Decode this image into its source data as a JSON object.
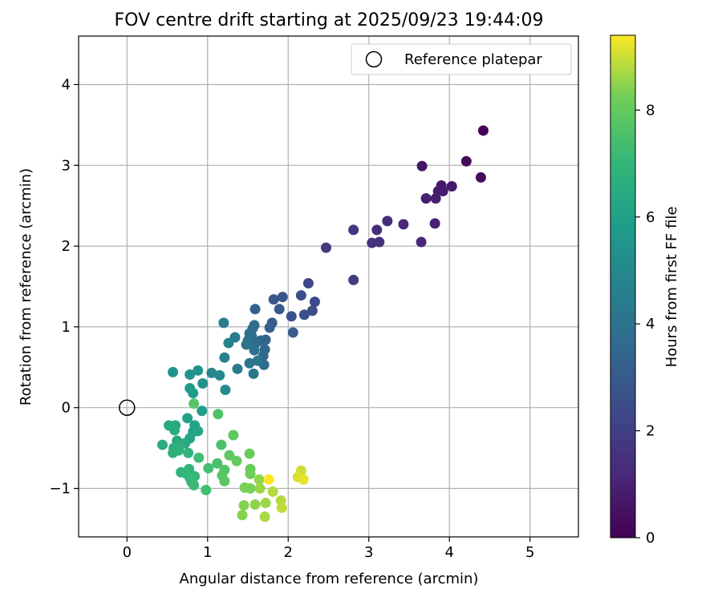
{
  "chart_data": {
    "type": "scatter",
    "title": "FOV centre drift starting at 2025/09/23 19:44:09",
    "xlabel": "Angular distance from reference (arcmin)",
    "ylabel": "Rotation from reference (arcmin)",
    "xlim": [
      -0.6,
      5.6
    ],
    "ylim": [
      -1.6,
      4.6
    ],
    "xticks": [
      0,
      1,
      2,
      3,
      4,
      5
    ],
    "xtick_labels": [
      "0",
      "1",
      "2",
      "3",
      "4",
      "5"
    ],
    "yticks": [
      -1,
      0,
      1,
      2,
      3,
      4
    ],
    "ytick_labels": [
      "−1",
      "0",
      "1",
      "2",
      "3",
      "4"
    ],
    "grid": true,
    "legend": {
      "label": "Reference platepar",
      "position": "top-right"
    },
    "reference_point": {
      "x": 0,
      "y": 0
    },
    "colorbar": {
      "label": "Hours from first FF file",
      "colormap": "viridis",
      "range": [
        0,
        9.4
      ],
      "ticks": [
        0,
        2,
        4,
        6,
        8
      ],
      "tick_labels": [
        "0",
        "2",
        "4",
        "6",
        "8"
      ]
    },
    "points": [
      {
        "x": 4.42,
        "y": 3.43,
        "h": 0.0
      },
      {
        "x": 4.21,
        "y": 3.05,
        "h": 0.3
      },
      {
        "x": 4.39,
        "y": 2.85,
        "h": 0.3
      },
      {
        "x": 3.66,
        "y": 2.99,
        "h": 0.6
      },
      {
        "x": 4.03,
        "y": 2.74,
        "h": 0.7
      },
      {
        "x": 3.9,
        "y": 2.75,
        "h": 0.7
      },
      {
        "x": 3.86,
        "y": 2.68,
        "h": 0.8
      },
      {
        "x": 3.92,
        "y": 2.68,
        "h": 0.8
      },
      {
        "x": 3.71,
        "y": 2.59,
        "h": 0.9
      },
      {
        "x": 3.83,
        "y": 2.59,
        "h": 0.9
      },
      {
        "x": 3.82,
        "y": 2.28,
        "h": 1.0
      },
      {
        "x": 3.65,
        "y": 2.05,
        "h": 1.2
      },
      {
        "x": 3.43,
        "y": 2.27,
        "h": 1.2
      },
      {
        "x": 3.23,
        "y": 2.31,
        "h": 1.3
      },
      {
        "x": 3.1,
        "y": 2.2,
        "h": 1.4
      },
      {
        "x": 3.04,
        "y": 2.04,
        "h": 1.5
      },
      {
        "x": 3.13,
        "y": 2.05,
        "h": 1.5
      },
      {
        "x": 2.81,
        "y": 2.2,
        "h": 1.7
      },
      {
        "x": 2.47,
        "y": 1.98,
        "h": 1.9
      },
      {
        "x": 2.81,
        "y": 1.58,
        "h": 2.0
      },
      {
        "x": 2.25,
        "y": 1.54,
        "h": 2.3
      },
      {
        "x": 2.33,
        "y": 1.31,
        "h": 2.4
      },
      {
        "x": 2.16,
        "y": 1.39,
        "h": 2.5
      },
      {
        "x": 2.3,
        "y": 1.2,
        "h": 2.5
      },
      {
        "x": 2.2,
        "y": 1.15,
        "h": 2.6
      },
      {
        "x": 2.04,
        "y": 1.13,
        "h": 2.7
      },
      {
        "x": 1.93,
        "y": 1.37,
        "h": 2.8
      },
      {
        "x": 1.82,
        "y": 1.34,
        "h": 2.9
      },
      {
        "x": 1.89,
        "y": 1.22,
        "h": 3.0
      },
      {
        "x": 1.8,
        "y": 1.05,
        "h": 3.1
      },
      {
        "x": 1.77,
        "y": 0.99,
        "h": 3.2
      },
      {
        "x": 2.06,
        "y": 0.93,
        "h": 3.1
      },
      {
        "x": 1.59,
        "y": 1.22,
        "h": 3.3
      },
      {
        "x": 1.66,
        "y": 0.83,
        "h": 3.4
      },
      {
        "x": 1.72,
        "y": 0.84,
        "h": 3.4
      },
      {
        "x": 1.71,
        "y": 0.72,
        "h": 3.5
      },
      {
        "x": 1.69,
        "y": 0.64,
        "h": 3.5
      },
      {
        "x": 1.7,
        "y": 0.53,
        "h": 3.6
      },
      {
        "x": 1.6,
        "y": 0.8,
        "h": 3.7
      },
      {
        "x": 1.55,
        "y": 0.88,
        "h": 3.7
      },
      {
        "x": 1.56,
        "y": 0.98,
        "h": 3.8
      },
      {
        "x": 1.58,
        "y": 1.02,
        "h": 3.8
      },
      {
        "x": 1.5,
        "y": 0.83,
        "h": 3.9
      },
      {
        "x": 1.52,
        "y": 0.92,
        "h": 3.9
      },
      {
        "x": 1.48,
        "y": 0.78,
        "h": 4.0
      },
      {
        "x": 1.58,
        "y": 0.71,
        "h": 4.0
      },
      {
        "x": 1.62,
        "y": 0.58,
        "h": 4.1
      },
      {
        "x": 1.52,
        "y": 0.55,
        "h": 4.1
      },
      {
        "x": 1.57,
        "y": 0.42,
        "h": 4.2
      },
      {
        "x": 1.37,
        "y": 0.48,
        "h": 4.3
      },
      {
        "x": 1.34,
        "y": 0.87,
        "h": 4.4
      },
      {
        "x": 1.2,
        "y": 1.05,
        "h": 4.5
      },
      {
        "x": 1.26,
        "y": 0.8,
        "h": 4.6
      },
      {
        "x": 1.21,
        "y": 0.62,
        "h": 4.6
      },
      {
        "x": 1.05,
        "y": 0.43,
        "h": 4.9
      },
      {
        "x": 1.15,
        "y": 0.4,
        "h": 5.0
      },
      {
        "x": 1.22,
        "y": 0.22,
        "h": 5.1
      },
      {
        "x": 0.94,
        "y": 0.3,
        "h": 5.3
      },
      {
        "x": 0.78,
        "y": 0.41,
        "h": 5.4
      },
      {
        "x": 0.88,
        "y": 0.46,
        "h": 5.4
      },
      {
        "x": 0.57,
        "y": 0.44,
        "h": 5.5
      },
      {
        "x": 0.78,
        "y": 0.24,
        "h": 5.7
      },
      {
        "x": 0.82,
        "y": 0.18,
        "h": 5.8
      },
      {
        "x": 0.93,
        "y": -0.04,
        "h": 5.9
      },
      {
        "x": 0.75,
        "y": -0.13,
        "h": 6.0
      },
      {
        "x": 0.84,
        "y": -0.22,
        "h": 6.1
      },
      {
        "x": 0.82,
        "y": -0.3,
        "h": 6.1
      },
      {
        "x": 0.88,
        "y": -0.29,
        "h": 6.2
      },
      {
        "x": 0.78,
        "y": -0.38,
        "h": 6.2
      },
      {
        "x": 0.72,
        "y": -0.44,
        "h": 6.3
      },
      {
        "x": 0.62,
        "y": -0.41,
        "h": 6.3
      },
      {
        "x": 0.52,
        "y": -0.22,
        "h": 6.4
      },
      {
        "x": 0.6,
        "y": -0.22,
        "h": 6.4
      },
      {
        "x": 0.59,
        "y": -0.28,
        "h": 6.5
      },
      {
        "x": 0.44,
        "y": -0.46,
        "h": 6.5
      },
      {
        "x": 0.58,
        "y": -0.5,
        "h": 6.6
      },
      {
        "x": 0.67,
        "y": -0.46,
        "h": 6.6
      },
      {
        "x": 0.57,
        "y": -0.56,
        "h": 6.7
      },
      {
        "x": 0.64,
        "y": -0.53,
        "h": 6.7
      },
      {
        "x": 0.76,
        "y": -0.56,
        "h": 6.8
      },
      {
        "x": 0.67,
        "y": -0.8,
        "h": 6.9
      },
      {
        "x": 0.77,
        "y": -0.76,
        "h": 6.9
      },
      {
        "x": 0.74,
        "y": -0.82,
        "h": 7.0
      },
      {
        "x": 0.78,
        "y": -0.87,
        "h": 7.0
      },
      {
        "x": 0.84,
        "y": -0.85,
        "h": 7.1
      },
      {
        "x": 0.8,
        "y": -0.92,
        "h": 7.1
      },
      {
        "x": 0.83,
        "y": -0.96,
        "h": 7.2
      },
      {
        "x": 0.98,
        "y": -1.02,
        "h": 7.3
      },
      {
        "x": 0.89,
        "y": -0.62,
        "h": 7.3
      },
      {
        "x": 1.01,
        "y": -0.75,
        "h": 7.4
      },
      {
        "x": 1.12,
        "y": -0.69,
        "h": 7.5
      },
      {
        "x": 1.17,
        "y": -0.46,
        "h": 7.5
      },
      {
        "x": 1.13,
        "y": -0.08,
        "h": 7.6
      },
      {
        "x": 0.83,
        "y": 0.05,
        "h": 7.7
      },
      {
        "x": 1.21,
        "y": -0.77,
        "h": 7.7
      },
      {
        "x": 1.18,
        "y": -0.84,
        "h": 7.8
      },
      {
        "x": 1.21,
        "y": -0.91,
        "h": 7.8
      },
      {
        "x": 1.27,
        "y": -0.59,
        "h": 7.9
      },
      {
        "x": 1.32,
        "y": -0.34,
        "h": 7.9
      },
      {
        "x": 1.36,
        "y": -0.66,
        "h": 8.0
      },
      {
        "x": 1.52,
        "y": -0.57,
        "h": 8.1
      },
      {
        "x": 1.53,
        "y": -0.76,
        "h": 8.1
      },
      {
        "x": 1.53,
        "y": -0.82,
        "h": 8.2
      },
      {
        "x": 1.46,
        "y": -0.99,
        "h": 8.3
      },
      {
        "x": 1.53,
        "y": -1.0,
        "h": 8.3
      },
      {
        "x": 1.45,
        "y": -1.21,
        "h": 8.4
      },
      {
        "x": 1.43,
        "y": -1.33,
        "h": 8.4
      },
      {
        "x": 1.59,
        "y": -1.2,
        "h": 8.5
      },
      {
        "x": 1.64,
        "y": -0.89,
        "h": 8.5
      },
      {
        "x": 1.65,
        "y": -1.0,
        "h": 8.6
      },
      {
        "x": 1.72,
        "y": -1.18,
        "h": 8.6
      },
      {
        "x": 1.71,
        "y": -1.35,
        "h": 8.7
      },
      {
        "x": 1.81,
        "y": -1.04,
        "h": 8.8
      },
      {
        "x": 1.91,
        "y": -1.15,
        "h": 8.8
      },
      {
        "x": 1.92,
        "y": -1.24,
        "h": 8.9
      },
      {
        "x": 2.16,
        "y": -0.78,
        "h": 9.0
      },
      {
        "x": 2.12,
        "y": -0.86,
        "h": 9.1
      },
      {
        "x": 2.19,
        "y": -0.89,
        "h": 9.2
      },
      {
        "x": 1.76,
        "y": -0.89,
        "h": 9.4
      }
    ]
  }
}
